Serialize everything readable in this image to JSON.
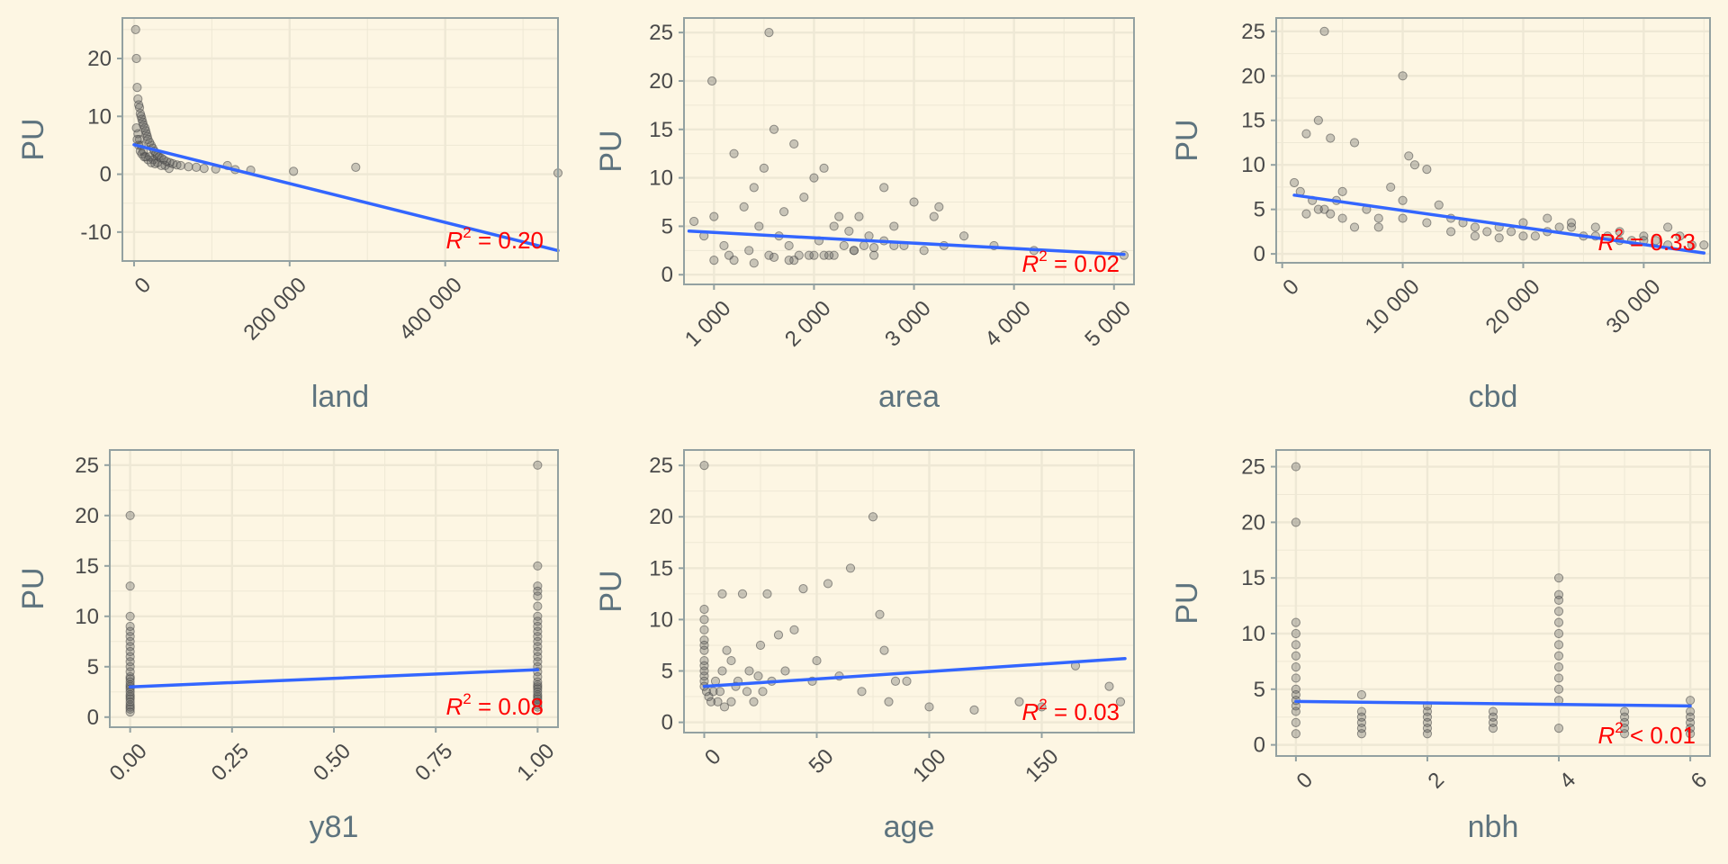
{
  "chart_data": [
    {
      "type": "scatter",
      "xlabel": "land",
      "ylabel": "PU",
      "xlim": [
        -15000,
        545000
      ],
      "ylim": [
        -15,
        27
      ],
      "xticks": [
        0,
        200000,
        400000
      ],
      "xtick_labels": [
        "0",
        "200 000",
        "400 000"
      ],
      "yticks": [
        -10,
        0,
        10,
        20
      ],
      "ytick_labels": [
        "-10",
        "0",
        "10",
        "20"
      ],
      "fit": {
        "x": [
          0,
          545000
        ],
        "y": [
          5.1,
          -13.2
        ]
      },
      "annotation": {
        "text": "R",
        "sup": "2",
        "rest": " = 0.20"
      },
      "x": [
        2000,
        3000,
        4000,
        5000,
        6000,
        7000,
        8000,
        9000,
        10000,
        11000,
        12000,
        14000,
        15000,
        16000,
        17000,
        18000,
        20000,
        22000,
        24000,
        26000,
        28000,
        30000,
        32000,
        35000,
        38000,
        42000,
        46000,
        50000,
        55000,
        60000,
        70000,
        80000,
        90000,
        105000,
        120000,
        130000,
        150000,
        205000,
        285000,
        545000,
        3000,
        5000,
        7000,
        9000,
        12000,
        15000,
        20000,
        25000,
        30000,
        40000,
        4000,
        6000,
        8000,
        10000,
        13000,
        18000,
        22000,
        27000,
        35000,
        45000
      ],
      "y": [
        25,
        20,
        15,
        13,
        12,
        11.5,
        10.5,
        10,
        9.5,
        9,
        8.5,
        8,
        7.5,
        7,
        6.5,
        6,
        5.5,
        5,
        4.5,
        4,
        3.5,
        3.2,
        3,
        2.8,
        2.5,
        2.2,
        2,
        1.8,
        1.6,
        1.5,
        1.3,
        1.2,
        1,
        0.9,
        1.5,
        0.8,
        0.7,
        0.5,
        1.2,
        0.2,
        8,
        7,
        6,
        5,
        4,
        3,
        3,
        2.5,
        2,
        1.5,
        6,
        5,
        4,
        3.5,
        3,
        2.5,
        2,
        1.8,
        1.5,
        1
      ]
    },
    {
      "type": "scatter",
      "xlabel": "area",
      "ylabel": "PU",
      "xlim": [
        700,
        5200
      ],
      "ylim": [
        -1,
        26.5
      ],
      "xticks": [
        1000,
        2000,
        3000,
        4000,
        5000
      ],
      "xtick_labels": [
        "1 000",
        "2 000",
        "3 000",
        "4 000",
        "5 000"
      ],
      "yticks": [
        0,
        5,
        10,
        15,
        20,
        25
      ],
      "ytick_labels": [
        "0",
        "5",
        "10",
        "15",
        "20",
        "25"
      ],
      "fit": {
        "x": [
          750,
          5100
        ],
        "y": [
          4.5,
          2.1
        ]
      },
      "annotation": {
        "text": "R",
        "sup": "2",
        "rest": " = 0.02"
      },
      "x": [
        800,
        900,
        1000,
        1100,
        1150,
        1200,
        1300,
        1350,
        1400,
        1450,
        1500,
        1550,
        1600,
        1650,
        1700,
        1750,
        1800,
        1850,
        1900,
        1950,
        2000,
        2050,
        2100,
        2150,
        2200,
        2250,
        2300,
        2350,
        2400,
        2450,
        2500,
        2550,
        2600,
        2700,
        2800,
        2900,
        3000,
        3100,
        3200,
        3300,
        3500,
        3800,
        4200,
        5100,
        1000,
        1200,
        1400,
        1600,
        1800,
        2000,
        2200,
        2400,
        2600,
        2800,
        1550,
        980,
        1750,
        2100,
        2700,
        3250
      ],
      "y": [
        5.5,
        4,
        6,
        3,
        2,
        12.5,
        7,
        2.5,
        9,
        5,
        11,
        2,
        15,
        4,
        6.5,
        3,
        13.5,
        2,
        8,
        2,
        10,
        3.5,
        11,
        2,
        5,
        6,
        3,
        4.5,
        2.5,
        6,
        3,
        4,
        2,
        3.5,
        5,
        3,
        7.5,
        2.5,
        6,
        3,
        4,
        3,
        2.5,
        2,
        1.5,
        1.5,
        1.2,
        1.8,
        1.5,
        2,
        2,
        2.5,
        2.8,
        3,
        25,
        20,
        1.5,
        2,
        9,
        7
      ]
    },
    {
      "type": "scatter",
      "xlabel": "cbd",
      "ylabel": "PU",
      "xlim": [
        -500,
        35500
      ],
      "ylim": [
        -1,
        26.5
      ],
      "xticks": [
        0,
        10000,
        20000,
        30000
      ],
      "xtick_labels": [
        "0",
        "10 000",
        "20 000",
        "30 000"
      ],
      "yticks": [
        0,
        5,
        10,
        15,
        20,
        25
      ],
      "ytick_labels": [
        "0",
        "5",
        "10",
        "15",
        "20",
        "25"
      ],
      "fit": {
        "x": [
          1000,
          35000
        ],
        "y": [
          6.6,
          0.1
        ]
      },
      "annotation": {
        "text": "R",
        "sup": "2",
        "rest": " = 0.33"
      },
      "x": [
        1000,
        1500,
        2000,
        2500,
        3000,
        3500,
        4000,
        4500,
        5000,
        6000,
        7000,
        8000,
        9000,
        10000,
        10500,
        11000,
        12000,
        13000,
        14000,
        15000,
        16000,
        17000,
        18000,
        19000,
        20000,
        21000,
        22000,
        23000,
        24000,
        25000,
        26000,
        27000,
        28000,
        29000,
        30000,
        31000,
        32000,
        33000,
        34000,
        35000,
        2000,
        3000,
        4000,
        5000,
        6000,
        8000,
        10000,
        12000,
        14000,
        16000,
        18000,
        20000,
        22000,
        24000,
        26000,
        28000,
        30000,
        32000,
        3500,
        10000
      ],
      "y": [
        8,
        7,
        13.5,
        6,
        15,
        5,
        13,
        6,
        7,
        12.5,
        5,
        4,
        7.5,
        6,
        11,
        10,
        9.5,
        5.5,
        4,
        3.5,
        3,
        2.5,
        3,
        2.5,
        3.5,
        2,
        4,
        3,
        3.5,
        2,
        3,
        2,
        2.5,
        1.5,
        2,
        1.5,
        3,
        2,
        1,
        1,
        4.5,
        5,
        4.5,
        4,
        3,
        3,
        4,
        3.5,
        2.5,
        2,
        1.8,
        2,
        2.5,
        3,
        2,
        1.5,
        1.5,
        1,
        25,
        20
      ]
    },
    {
      "type": "scatter",
      "xlabel": "y81",
      "ylabel": "PU",
      "xlim": [
        -0.05,
        1.05
      ],
      "ylim": [
        -1,
        26.5
      ],
      "xticks": [
        0,
        0.25,
        0.5,
        0.75,
        1
      ],
      "xtick_labels": [
        "0.00",
        "0.25",
        "0.50",
        "0.75",
        "1.00"
      ],
      "yticks": [
        0,
        5,
        10,
        15,
        20,
        25
      ],
      "ytick_labels": [
        "0",
        "5",
        "10",
        "15",
        "20",
        "25"
      ],
      "fit": {
        "x": [
          0,
          1
        ],
        "y": [
          3.0,
          4.7
        ]
      },
      "annotation": {
        "text": "R",
        "sup": "2",
        "rest": " = 0.08"
      },
      "x": [
        0,
        0,
        0,
        0,
        0,
        0,
        0,
        0,
        0,
        0,
        0,
        0,
        0,
        0,
        0,
        0,
        0,
        0,
        0,
        0,
        0,
        0,
        0,
        0,
        0,
        0,
        0,
        0,
        1,
        1,
        1,
        1,
        1,
        1,
        1,
        1,
        1,
        1,
        1,
        1,
        1,
        1,
        1,
        1,
        1,
        1,
        1,
        1,
        1,
        1,
        1,
        1,
        1,
        1,
        1,
        1,
        1,
        1
      ],
      "y": [
        20,
        13,
        10,
        9,
        8.5,
        8,
        7.5,
        7,
        6.5,
        6,
        5.5,
        5,
        4.5,
        4,
        3.8,
        3.5,
        3.2,
        3,
        2.8,
        2.5,
        2.2,
        2,
        1.8,
        1.5,
        1.2,
        1,
        0.8,
        0.5,
        25,
        15,
        13,
        12.5,
        12,
        11,
        10,
        9.5,
        9,
        8.5,
        8,
        7.5,
        7,
        6.5,
        6,
        5.5,
        5,
        4.5,
        4,
        3.5,
        3.2,
        3,
        2.8,
        2.5,
        2.2,
        2,
        1.8,
        1.5,
        1.2,
        1
      ]
    },
    {
      "type": "scatter",
      "xlabel": "age",
      "ylabel": "PU",
      "xlim": [
        -9,
        191
      ],
      "ylim": [
        -1,
        26.5
      ],
      "xticks": [
        0,
        50,
        100,
        150
      ],
      "xtick_labels": [
        "0",
        "50",
        "100",
        "150"
      ],
      "yticks": [
        0,
        5,
        10,
        15,
        20,
        25
      ],
      "ytick_labels": [
        "0",
        "5",
        "10",
        "15",
        "20",
        "25"
      ],
      "fit": {
        "x": [
          0,
          187
        ],
        "y": [
          3.5,
          6.2
        ]
      },
      "annotation": {
        "text": "R",
        "sup": "2",
        "rest": " = 0.03"
      },
      "x": [
        0,
        0,
        0,
        0,
        0,
        0,
        0,
        0,
        0,
        0,
        0,
        0,
        0,
        1,
        2,
        3,
        4,
        5,
        6,
        7,
        8,
        9,
        10,
        12,
        14,
        15,
        17,
        19,
        20,
        22,
        24,
        26,
        28,
        30,
        33,
        36,
        40,
        44,
        48,
        50,
        55,
        60,
        65,
        70,
        75,
        78,
        80,
        82,
        85,
        90,
        100,
        120,
        140,
        150,
        165,
        180,
        185,
        8,
        12,
        25
      ],
      "y": [
        25,
        11,
        10,
        9,
        8,
        7.5,
        7,
        6,
        5.5,
        5,
        4.5,
        4,
        3.5,
        3,
        2.5,
        2,
        3,
        4,
        2,
        3,
        5,
        1.5,
        7,
        2,
        3.5,
        4,
        12.5,
        3,
        5,
        2,
        4.5,
        3,
        12.5,
        4,
        8.5,
        5,
        9,
        13,
        4,
        6,
        13.5,
        4.5,
        15,
        3,
        20,
        10.5,
        7,
        2,
        4,
        4,
        1.5,
        1.2,
        2,
        1.5,
        5.5,
        3.5,
        2,
        12.5,
        6,
        7.5
      ]
    },
    {
      "type": "scatter",
      "xlabel": "nbh",
      "ylabel": "PU",
      "xlim": [
        -0.3,
        6.3
      ],
      "ylim": [
        -1,
        26.5
      ],
      "xticks": [
        0,
        2,
        4,
        6
      ],
      "xtick_labels": [
        "0",
        "2",
        "4",
        "6"
      ],
      "yticks": [
        0,
        5,
        10,
        15,
        20,
        25
      ],
      "ytick_labels": [
        "0",
        "5",
        "10",
        "15",
        "20",
        "25"
      ],
      "fit": {
        "x": [
          0,
          6
        ],
        "y": [
          3.9,
          3.5
        ]
      },
      "annotation": {
        "text": "R",
        "sup": "2",
        "rest": " < 0.01"
      },
      "x": [
        0,
        0,
        0,
        0,
        0,
        0,
        0,
        0,
        0,
        0,
        0,
        0,
        0,
        0,
        0,
        1,
        1,
        1,
        1,
        1,
        1,
        2,
        2,
        2,
        2,
        2,
        2,
        3,
        3,
        3,
        3,
        4,
        4,
        4,
        4,
        4,
        4,
        4,
        4,
        4,
        4,
        4,
        4,
        4,
        5,
        5,
        5,
        5,
        5,
        6,
        6,
        6,
        6,
        6,
        6
      ],
      "y": [
        25,
        20,
        11,
        10,
        9,
        8,
        7,
        6,
        5,
        4.5,
        4,
        3.5,
        3,
        2,
        1,
        4.5,
        3,
        2.5,
        2,
        1.5,
        1,
        3.5,
        3,
        2.5,
        2,
        1.5,
        1,
        3,
        2.5,
        2,
        1.5,
        15,
        13.5,
        13,
        12,
        11,
        10,
        9,
        8,
        7,
        6,
        5,
        4,
        1.5,
        3,
        2.5,
        2,
        1.5,
        1,
        4,
        3,
        2.5,
        2,
        1.5,
        1
      ]
    }
  ]
}
